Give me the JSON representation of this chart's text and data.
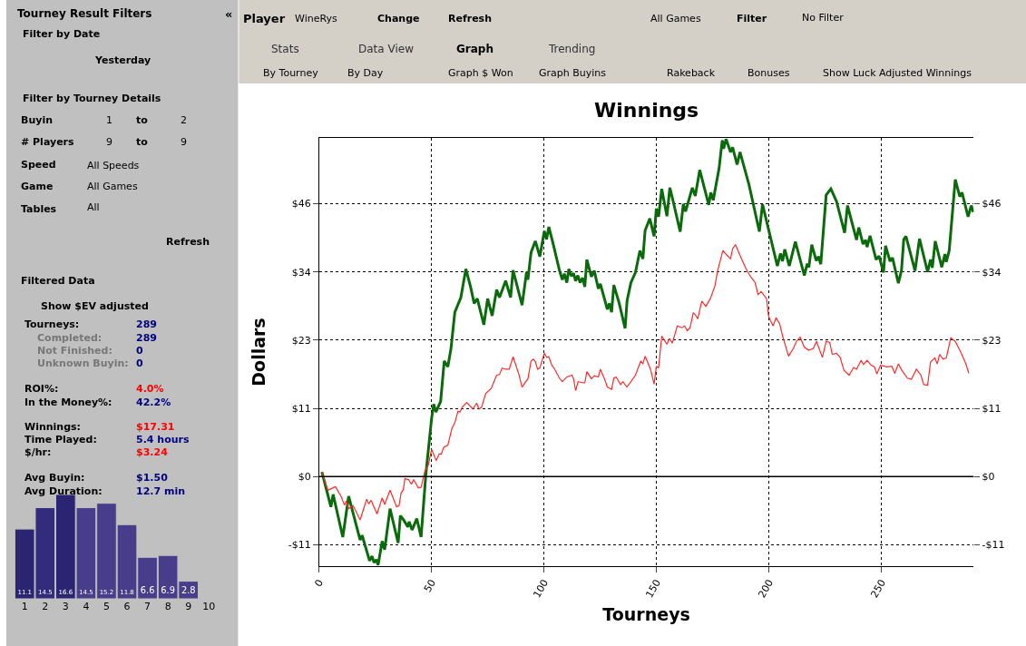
{
  "chart_data": [
    {
      "type": "other",
      "annotations": [
        "Tourney Result Filters",
        "«",
        "Filter by Date",
        "Yesterday",
        "Filter by Tourney Details",
        "Buyin",
        "1",
        "to",
        "2",
        "# Players",
        "9",
        "to",
        "9",
        "Speed",
        "All Speeds",
        "Game",
        "All Games",
        "Tables",
        "All",
        "Refresh",
        "Filtered Data",
        "Show $EV adjusted",
        "Tourneys:",
        "289",
        "Completed:",
        "289",
        "Not Finished:",
        "0",
        "Unknown Buyin:",
        "0",
        "ROI%:",
        "4.0%",
        "In the Money%:",
        "42.2%",
        "Winnings:",
        "$17.31",
        "Time Played:",
        "5.4 hours",
        "$/hr:",
        "$3.24",
        "Avg Buyin:",
        "$1.50",
        "Avg Duration:",
        "12.7 min"
      ]
    },
    {
      "type": "bar",
      "categories": [
        "1",
        "2",
        "3",
        "4",
        "5",
        "6",
        "7",
        "8",
        "9",
        "10"
      ],
      "values": [
        11.1,
        14.5,
        16.6,
        14.5,
        15.2,
        11.8,
        6.6,
        6.9,
        2.8,
        null
      ],
      "colors": [
        "#2a2472",
        "#332c7c",
        "#2a2472",
        "#483d8b",
        "#483d8b",
        "#483d8b",
        "#483d8b",
        "#483d8b",
        "#483d8b",
        "#483d8b"
      ],
      "data_labels": true
    },
    {
      "type": "other",
      "annotations": [
        "Player",
        "WineRys",
        "Change",
        "Refresh",
        "All Games",
        "Filter",
        "No Filter",
        "Stats",
        "Data View",
        "Graph",
        "Trending",
        "By Tourney",
        "By Day",
        "Graph $ Won",
        "Graph Buyins",
        "Rakeback",
        "Bonuses",
        "Show Luck Adjusted Winnings"
      ]
    },
    {
      "type": "line",
      "title": "Winnings",
      "xlabel": "Tourneys",
      "ylabel": "Dollars",
      "xlim": [
        0,
        291
      ],
      "xticks": [
        0,
        50,
        100,
        150,
        200,
        250
      ],
      "ylim": [
        -15.1,
        57.1
      ],
      "yticks": [
        {
          "value": -11.5,
          "label": "-$11"
        },
        {
          "value": 0,
          "label": "$0"
        },
        {
          "value": 11.5,
          "label": "$11"
        },
        {
          "value": 23,
          "label": "$23"
        },
        {
          "value": 34.5,
          "label": "$34"
        },
        {
          "value": 46,
          "label": "$46"
        }
      ],
      "y2lim": [
        -15.1,
        57.1
      ],
      "y2ticks": [
        {
          "value": -11.5,
          "label": "-$11"
        },
        {
          "value": 0,
          "label": "$0"
        },
        {
          "value": 11.5,
          "label": "$11"
        },
        {
          "value": 23,
          "label": "$23"
        },
        {
          "value": 34.5,
          "label": "$34"
        },
        {
          "value": 46,
          "label": "$46"
        }
      ],
      "grid": true,
      "ref_lines": [
        {
          "axis": "y",
          "value": 0,
          "color": "#000000"
        }
      ],
      "series": [
        {
          "color": "#0b6a0b",
          "x": [
            1.2,
            5.2,
            6.2,
            10.5,
            13.1,
            18.2,
            19.1,
            22.4,
            23.5,
            24.4,
            25.4,
            26.2,
            28.0,
            29.1,
            31.5,
            35.1,
            36.1,
            37.7,
            39.4,
            40.0,
            41.3,
            43.4,
            45.3,
            47.4,
            50.0,
            50.9,
            51.9,
            54.0,
            55.6,
            57.2,
            58.6,
            60.3,
            63.0,
            65.2,
            67.3,
            68.9,
            70.3,
            73.2,
            74.9,
            76.9,
            78.9,
            80.2,
            82.9,
            85.1,
            86.2,
            90.2,
            92.2,
            92.8,
            94.2,
            96.1,
            98.1,
            100.1,
            101.1,
            102.1,
            104.1,
            106.8,
            108.1,
            109.0,
            110.1,
            111.0,
            112.1,
            113.1,
            114.0,
            115.0,
            116.0,
            117.1,
            118.1,
            119.0,
            121.0,
            122.3,
            124.1,
            125.0,
            128.1,
            129.0,
            130.0,
            131.0,
            133.4,
            136.0,
            136.9,
            138.6,
            140.6,
            142.6,
            143.9,
            144.9,
            147.0,
            148.9,
            149.9,
            150.9,
            152.3,
            154.6,
            155.9,
            157.2,
            160.5,
            161.9,
            162.9,
            165.9,
            167.2,
            169.2,
            173.2,
            174.1,
            175.2,
            177.8,
            179.2,
            179.8,
            180.9,
            182.9,
            183.8,
            185.8,
            187.1,
            191.1,
            195.7,
            197.1,
            203.7,
            205.1,
            206.0,
            207.0,
            209.0,
            211.7,
            215.7,
            217.0,
            217.7,
            219.0,
            221.0,
            222.0,
            223.0,
            225.4,
            227.5,
            230.0,
            233.6,
            234.9,
            238.9,
            239.9,
            241.8,
            242.9,
            243.6,
            244.9,
            247.6,
            248.9,
            250.9,
            251.8,
            253.8,
            254.9,
            257.5,
            258.9,
            259.9,
            260.9,
            264.9,
            266.9,
            270.5,
            271.8,
            272.6,
            273.9,
            276.8,
            278.2,
            278.8,
            280.1,
            282.8,
            284.8,
            285.8,
            288.5,
            289.9,
            290.8
          ],
          "values": [
            0.8,
            -5.1,
            -3.0,
            -10.2,
            -3.3,
            -10.7,
            -9.9,
            -14.2,
            -13.4,
            -14.5,
            -14.0,
            -14.9,
            -10.9,
            -12.3,
            -5.4,
            -11.2,
            -6.6,
            -7.4,
            -8.5,
            -7.6,
            -9.0,
            -7.1,
            -10.2,
            0.3,
            9.9,
            12.2,
            10.9,
            12.7,
            19.5,
            18.5,
            21.6,
            27.7,
            30.2,
            35.0,
            32.0,
            29.2,
            30.0,
            25.6,
            30.0,
            27.1,
            31.5,
            30.2,
            33.0,
            30.2,
            34.8,
            28.9,
            34.5,
            33.2,
            37.8,
            39.7,
            37.1,
            41.4,
            40.0,
            42.1,
            39.1,
            34.8,
            33.2,
            34.2,
            32.7,
            35.0,
            33.8,
            34.3,
            33.0,
            33.9,
            32.7,
            33.5,
            32.0,
            36.6,
            33.7,
            34.7,
            31.7,
            32.5,
            28.2,
            29.2,
            27.7,
            32.3,
            29.2,
            25.0,
            29.7,
            32.7,
            34.4,
            38.1,
            36.7,
            41.5,
            43.5,
            40.5,
            45.2,
            43.8,
            48.5,
            43.9,
            48.7,
            46.7,
            41.3,
            46.0,
            44.7,
            48.7,
            47.3,
            51.7,
            45.8,
            47.9,
            46.6,
            52.0,
            56.7,
            55.3,
            56.9,
            54.7,
            55.5,
            52.6,
            54.7,
            49.2,
            41.3,
            45.9,
            35.5,
            37.6,
            36.3,
            38.3,
            35.5,
            39.6,
            33.9,
            35.9,
            35.3,
            39.1,
            36.4,
            37.1,
            35.8,
            47.5,
            48.5,
            46.4,
            41.1,
            45.7,
            39.9,
            42.0,
            39.2,
            39.9,
            38.7,
            40.6,
            36.6,
            37.2,
            34.4,
            38.9,
            36.3,
            36.9,
            32.6,
            34.8,
            40.0,
            40.5,
            34.7,
            40.1,
            34.5,
            36.6,
            35.2,
            39.7,
            35.3,
            37.5,
            36.2,
            38.1,
            50.1,
            47.2,
            47.9,
            43.8,
            45.7,
            44.6
          ]
        },
        {
          "color": "#ff2a2a",
          "x": [
            1.2,
            3.9,
            7.2,
            9.8,
            11.2,
            12.1,
            13.1,
            15.1,
            18.2,
            21.1,
            22.0,
            23.1,
            25.7,
            28.0,
            29.1,
            31.5,
            34.4,
            35.5,
            36.4,
            37.4,
            38.1,
            39.7,
            41.0,
            42.0,
            44.1,
            45.3,
            47.0,
            48.4,
            50.0,
            52.0,
            53.3,
            54.3,
            55.3,
            57.2,
            59.0,
            60.3,
            61.7,
            62.6,
            63.6,
            65.6,
            68.3,
            70.0,
            71.0,
            72.2,
            74.0,
            76.5,
            78.9,
            80.2,
            81.3,
            82.9,
            84.5,
            86.2,
            88.8,
            90.2,
            92.8,
            94.2,
            95.2,
            96.1,
            97.1,
            98.1,
            100.1,
            101.1,
            102.1,
            103.4,
            104.7,
            106.8,
            108.1,
            110.1,
            112.4,
            113.1,
            114.0,
            115.1,
            117.4,
            118.1,
            119.0,
            121.0,
            122.3,
            124.1,
            125.0,
            126.8,
            128.1,
            130.0,
            131.0,
            132.0,
            134.0,
            135.0,
            136.8,
            138.6,
            140.6,
            143.0,
            143.9,
            144.9,
            147.3,
            148.9,
            149.9,
            150.9,
            152.3,
            154.6,
            155.7,
            157.0,
            159.2,
            161.2,
            162.5,
            163.6,
            164.9,
            166.3,
            167.2,
            168.3,
            170.1,
            171.9,
            173.9,
            175.9,
            177.2,
            179.5,
            181.1,
            182.9,
            183.8,
            185.1,
            186.5,
            189.8,
            191.8,
            193.8,
            195.1,
            196.5,
            198.9,
            199.8,
            201.8,
            203.1,
            204.7,
            206.1,
            208.7,
            210.8,
            212.2,
            213.8,
            215.7,
            217.7,
            219.7,
            221.1,
            223.7,
            225.4,
            227.0,
            228.1,
            230.0,
            231.6,
            233.3,
            235.6,
            237.6,
            238.9,
            240.9,
            242.0,
            243.6,
            245.3,
            246.9,
            247.9,
            249.6,
            252.3,
            254.6,
            255.9,
            257.5,
            258.9,
            261.5,
            263.3,
            265.5,
            267.5,
            268.8,
            270.5,
            271.8,
            273.7,
            274.8,
            275.8,
            277.4,
            278.8,
            280.8,
            282.1,
            282.8,
            285.2,
            287.5,
            288.8
          ],
          "values": [
            0.8,
            -2.3,
            -1.7,
            -3.4,
            -4.8,
            -4.1,
            -5.4,
            -4.9,
            -7.3,
            -3.8,
            -4.6,
            -4.0,
            -6.3,
            -3.6,
            -4.7,
            -2.3,
            -5.1,
            -4.9,
            -2.8,
            -2.2,
            -0.35,
            -0.5,
            -1.3,
            -0.5,
            -1.9,
            -1.8,
            1.0,
            1.8,
            4.6,
            2.7,
            3.8,
            3.8,
            4.9,
            5.3,
            8.1,
            9.1,
            11.0,
            10.9,
            11.7,
            12.5,
            11.4,
            12.4,
            11.4,
            11.7,
            14.0,
            14.9,
            17.1,
            17.2,
            18.3,
            18.1,
            18.1,
            20.2,
            17.2,
            15.1,
            16.5,
            19.5,
            19.8,
            19.4,
            18.1,
            18.3,
            20.8,
            20.1,
            20.2,
            18.8,
            18.1,
            16.6,
            16.0,
            16.8,
            17.1,
            16.5,
            14.5,
            16.0,
            15.8,
            15.8,
            17.7,
            16.5,
            17.0,
            16.8,
            18.1,
            16.5,
            15.1,
            14.7,
            16.6,
            16.8,
            15.5,
            16.0,
            15.1,
            16.0,
            17.1,
            19.5,
            19.0,
            20.3,
            18.1,
            15.6,
            18.6,
            18.3,
            23.7,
            22.3,
            23.3,
            22.5,
            25.4,
            25.1,
            25.4,
            24.6,
            25.1,
            27.6,
            27.3,
            26.6,
            29.6,
            28.7,
            30.0,
            32.1,
            34.8,
            38.1,
            37.4,
            36.7,
            38.4,
            39.1,
            37.8,
            35.0,
            33.7,
            32.7,
            30.7,
            31.2,
            30.0,
            27.0,
            25.4,
            26.8,
            25.8,
            23.6,
            20.3,
            21.6,
            22.8,
            23.5,
            21.8,
            21.3,
            21.6,
            22.8,
            20.1,
            22.8,
            22.6,
            20.6,
            20.8,
            20.1,
            17.9,
            17.1,
            18.4,
            18.1,
            19.6,
            18.9,
            19.6,
            18.8,
            18.5,
            17.3,
            18.8,
            18.5,
            18.6,
            17.4,
            19.0,
            18.0,
            16.6,
            16.4,
            18.1,
            17.1,
            15.5,
            15.4,
            19.3,
            20.0,
            19.0,
            20.6,
            19.8,
            20.0,
            23.4,
            23.0,
            22.8,
            21.0,
            19.0,
            17.4
          ]
        }
      ]
    }
  ]
}
